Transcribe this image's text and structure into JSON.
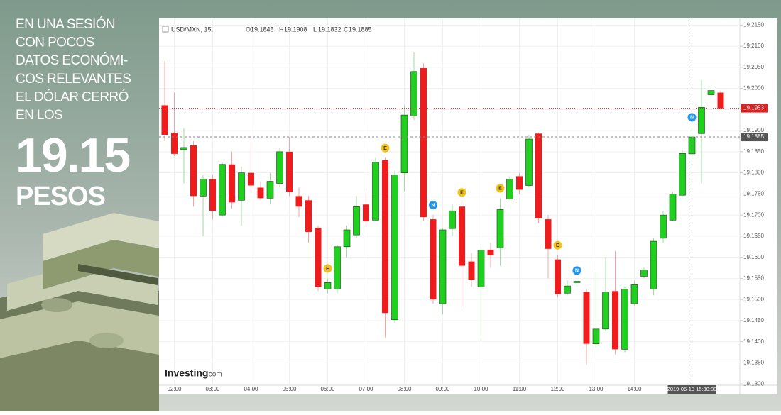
{
  "headline": {
    "lines": [
      "EN UNA SESIÓN",
      "CON POCOS",
      "DATOS ECONÓMI-",
      "COS RELEVANTES",
      "EL DÓLAR CERRÓ",
      "EN LOS"
    ],
    "number": "19.15",
    "unit": "PESOS"
  },
  "chart_data": {
    "type": "candlestick",
    "symbol": "USD/MXN, 15,",
    "ohlc_header": [
      {
        "label": "O",
        "value": 19.1845
      },
      {
        "label": "H",
        "value": 19.1908
      },
      {
        "label": "L",
        "value": 19.1832
      },
      {
        "label": "C",
        "value": 19.1885
      }
    ],
    "categories": [
      null,
      "02:00",
      null,
      null,
      null,
      "03:00",
      null,
      null,
      null,
      "04:00",
      null,
      null,
      null,
      "05:00",
      null,
      null,
      null,
      "06:00",
      null,
      null,
      null,
      "07:00",
      null,
      null,
      null,
      "08:00",
      null,
      null,
      null,
      "09:00",
      null,
      null,
      null,
      "10:00",
      null,
      null,
      null,
      "11:00",
      null,
      null,
      null,
      "12:00",
      null,
      null,
      null,
      "13:00",
      null,
      null,
      null,
      "14:00",
      null,
      null,
      null,
      null,
      null,
      null,
      null,
      null,
      null
    ],
    "open": [
      19.196,
      19.1895,
      19.1855,
      19.1865,
      19.1745,
      19.1785,
      19.17,
      19.182,
      19.1735,
      19.18,
      19.1765,
      19.174,
      19.1775,
      19.185,
      19.1745,
      19.1735,
      19.167,
      19.1525,
      19.1525,
      19.1625,
      19.1653,
      19.1725,
      19.1688,
      19.183,
      19.1452,
      19.18,
      19.1935,
      19.2048,
      19.169,
      19.149,
      19.1668,
      19.172,
      19.159,
      19.153,
      19.1618,
      19.1622,
      19.1738,
      19.1792,
      19.177,
      19.1893,
      19.169,
      19.1595,
      19.1515,
      19.154,
      19.1518,
      19.1395,
      19.143,
      19.152,
      19.1382,
      19.149,
      19.1555,
      19.1525,
      19.1645,
      19.1688,
      19.1747,
      19.1845,
      19.1893,
      19.1985,
      19.199
    ],
    "high": [
      19.2065,
      19.199,
      19.1905,
      19.1875,
      19.1795,
      19.1795,
      19.1825,
      19.185,
      19.1815,
      19.1875,
      19.178,
      19.18,
      19.186,
      19.1885,
      19.1765,
      19.1745,
      19.1675,
      19.155,
      19.163,
      19.1675,
      19.1745,
      19.1755,
      19.1835,
      19.1835,
      19.1805,
      19.196,
      19.2085,
      19.206,
      19.17,
      19.167,
      19.1725,
      19.173,
      19.161,
      19.1625,
      19.1635,
      19.174,
      19.179,
      19.18,
      19.189,
      19.1895,
      19.17,
      19.1605,
      19.1545,
      19.1545,
      19.1525,
      19.1565,
      19.16,
      19.1615,
      19.153,
      19.1545,
      19.1575,
      19.1645,
      19.171,
      19.1755,
      19.1855,
      19.1908,
      19.202,
      19.2,
      19.1995
    ],
    "low": [
      19.1875,
      19.184,
      19.1775,
      19.172,
      19.165,
      19.169,
      19.1695,
      19.1715,
      19.1675,
      19.1755,
      19.1735,
      19.1725,
      19.1765,
      19.1745,
      19.1695,
      19.1635,
      19.152,
      19.1515,
      19.1515,
      19.16,
      19.1645,
      19.1675,
      19.1685,
      19.141,
      19.1445,
      19.1757,
      19.1925,
      19.1685,
      19.149,
      19.1465,
      19.165,
      19.148,
      19.153,
      19.1405,
      19.1575,
      19.158,
      19.1735,
      19.175,
      19.1765,
      19.168,
      19.155,
      19.1505,
      19.151,
      19.153,
      19.1345,
      19.1385,
      19.1425,
      19.137,
      19.1375,
      19.1485,
      19.155,
      19.151,
      19.1635,
      19.1685,
      19.1745,
      19.1832,
      19.1775,
      19.198,
      19.195
    ],
    "close": [
      19.189,
      19.1845,
      19.186,
      19.1745,
      19.1785,
      19.171,
      19.182,
      19.173,
      19.18,
      19.177,
      19.174,
      19.178,
      19.185,
      19.1755,
      19.172,
      19.166,
      19.153,
      19.154,
      19.1625,
      19.1665,
      19.172,
      19.1685,
      19.1825,
      19.1468,
      19.1795,
      19.1937,
      19.204,
      19.1695,
      19.15,
      19.1665,
      19.171,
      19.158,
      19.1547,
      19.1617,
      19.1605,
      19.1713,
      19.1785,
      19.176,
      19.188,
      19.1692,
      19.162,
      19.1513,
      19.1532,
      19.1543,
      19.1395,
      19.143,
      19.1518,
      19.1382,
      19.1525,
      19.1535,
      19.157,
      19.1638,
      19.17,
      19.175,
      19.1846,
      19.1885,
      19.1955,
      19.1995,
      19.1953
    ],
    "up_color": "#1fd01f",
    "up_border": "#1b3b1b",
    "down_color": "#ee1c1c",
    "up_wick": "#9edf9e",
    "down_wick": "#f3a5a5",
    "ylim": [
      19.1297,
      19.2164
    ],
    "yticks": [
      {
        "value": 19.13,
        "label": "19.1300"
      },
      {
        "value": 19.135,
        "label": "19.1350"
      },
      {
        "value": 19.14,
        "label": "19.1400"
      },
      {
        "value": 19.145,
        "label": "19.1450"
      },
      {
        "value": 19.15,
        "label": "19.1500"
      },
      {
        "value": 19.155,
        "label": "19.1550"
      },
      {
        "value": 19.16,
        "label": "19.1600"
      },
      {
        "value": 19.165,
        "label": "19.1650"
      },
      {
        "value": 19.17,
        "label": "19.1700"
      },
      {
        "value": 19.175,
        "label": "19.1750"
      },
      {
        "value": 19.18,
        "label": "19.1800"
      },
      {
        "value": 19.185,
        "label": "19.1850"
      },
      {
        "value": 19.19,
        "label": "19.1900"
      },
      {
        "value": 19.195,
        "label": "19.1950"
      },
      {
        "value": 19.2,
        "label": "19.2000"
      },
      {
        "value": 19.205,
        "label": "19.2050"
      },
      {
        "value": 19.21,
        "label": "19.2100"
      },
      {
        "value": 19.215,
        "label": "19.2150"
      }
    ],
    "grid": true,
    "last_price": {
      "value": 19.1953,
      "color": "#e02020"
    },
    "crosshair": {
      "value": 19.1885,
      "at": 55,
      "label": "2019-06-13 15:30:00"
    },
    "events": [
      {
        "at": 17,
        "label": "E",
        "color": "#f2c218"
      },
      {
        "at": 23,
        "label": "E",
        "color": "#f2c218"
      },
      {
        "at": 28,
        "label": "N",
        "color": "#2196f3"
      },
      {
        "at": 31,
        "label": "E",
        "color": "#f2c218"
      },
      {
        "at": 35,
        "label": "E",
        "color": "#f2c218"
      },
      {
        "at": 41,
        "label": "E",
        "color": "#f2c218"
      },
      {
        "at": 43,
        "label": "N",
        "color": "#2196f3"
      },
      {
        "at": 55,
        "label": "N",
        "color": "#2196f3"
      }
    ],
    "watermark": {
      "brand": "Investing",
      "suffix": ".com"
    }
  }
}
